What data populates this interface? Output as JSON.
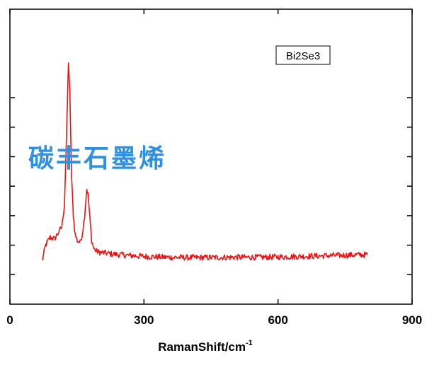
{
  "chart_data": {
    "type": "line",
    "title": "",
    "xlabel": "RamanShift/cm",
    "xlabel_superscript": "-1",
    "ylabel": "",
    "xlim": [
      0,
      900
    ],
    "ylim": [
      0,
      1
    ],
    "x_ticks": [
      0,
      300,
      600,
      900
    ],
    "x_tick_labels": [
      "0",
      "300",
      "600",
      "900"
    ],
    "y_ticks": [
      0.1,
      0.2,
      0.3,
      0.4,
      0.5,
      0.6,
      0.7
    ],
    "y_tick_labels": [],
    "grid": false,
    "legend": {
      "placement": "top-right",
      "entries": [
        "Bi2Se3"
      ]
    },
    "series": [
      {
        "name": "Bi2Se3",
        "color": "#ee1111",
        "x": [
          72,
          80,
          90,
          100,
          108,
          116,
          122,
          127,
          131,
          134,
          138,
          142,
          146,
          151,
          157,
          162,
          167,
          172,
          175,
          179,
          183,
          188,
          193,
          200,
          210,
          230,
          260,
          300,
          350,
          400,
          450,
          500,
          550,
          600,
          650,
          700,
          750,
          800
        ],
        "y": [
          0.146,
          0.2,
          0.227,
          0.221,
          0.242,
          0.262,
          0.336,
          0.586,
          0.823,
          0.722,
          0.43,
          0.3,
          0.236,
          0.215,
          0.209,
          0.238,
          0.298,
          0.391,
          0.371,
          0.29,
          0.216,
          0.188,
          0.18,
          0.176,
          0.174,
          0.17,
          0.166,
          0.162,
          0.159,
          0.158,
          0.158,
          0.159,
          0.159,
          0.16,
          0.162,
          0.164,
          0.166,
          0.168
        ]
      }
    ]
  },
  "watermark": "碳丰石墨烯",
  "colors": {
    "series": "#ee1111",
    "watermark": "#2f8fe0",
    "axes": "#000000"
  }
}
